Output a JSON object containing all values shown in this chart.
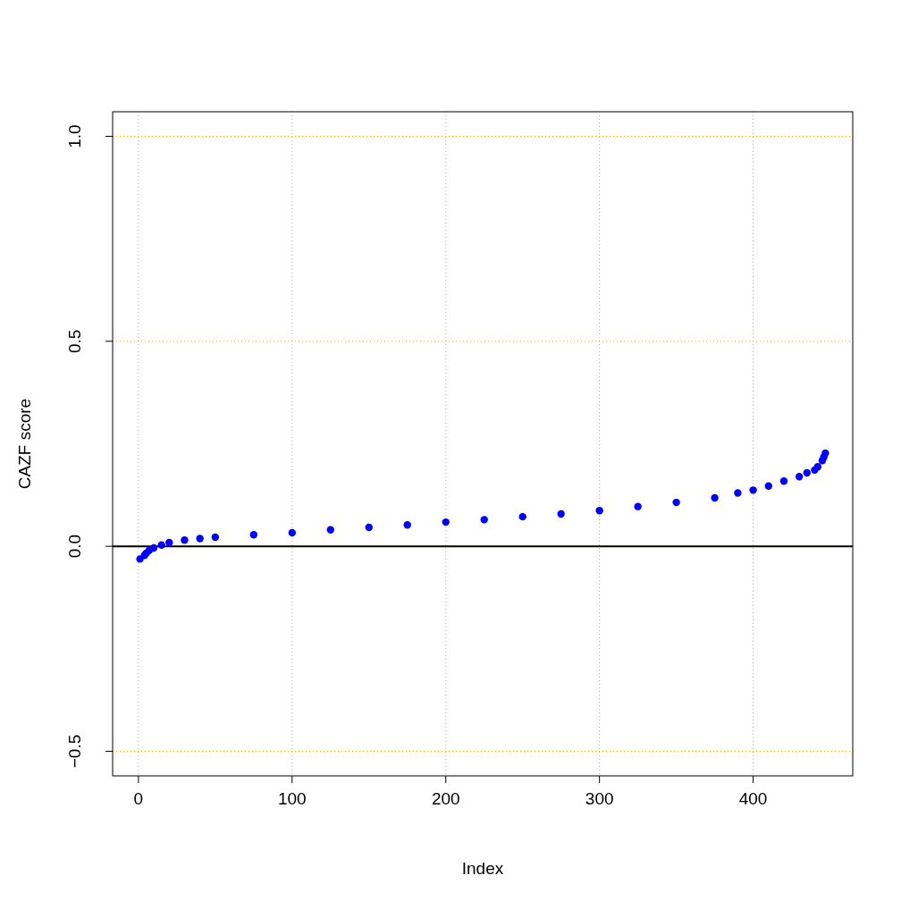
{
  "chart_data": {
    "type": "scatter",
    "xlabel": "Index",
    "ylabel": "CAZF score",
    "xlim": [
      -16.8,
      464.8
    ],
    "ylim": [
      -0.56,
      1.06
    ],
    "xticks": [
      0,
      100,
      200,
      300,
      400
    ],
    "yticks": [
      -0.5,
      {
        "value": 0,
        "label": "0.0"
      },
      0.5,
      {
        "value": 1,
        "label": "1.0"
      }
    ],
    "grid": true,
    "marker": "circle",
    "ref_lines": [
      {
        "axis": "y",
        "value": 0,
        "color": "#000000",
        "line_style": "solid"
      }
    ],
    "series": [
      {
        "color": "#0000ff",
        "x": [
          1,
          4,
          5,
          7,
          10,
          15,
          20,
          30,
          40,
          50,
          75,
          100,
          125,
          150,
          175,
          200,
          225,
          250,
          275,
          300,
          325,
          350,
          375,
          390,
          400,
          410,
          420,
          430,
          435,
          440,
          442,
          445,
          446,
          447
        ],
        "values": [
          -0.031,
          -0.022,
          -0.017,
          -0.01,
          -0.004,
          0.003,
          0.009,
          0.015,
          0.019,
          0.022,
          0.028,
          0.033,
          0.04,
          0.046,
          0.052,
          0.059,
          0.065,
          0.072,
          0.079,
          0.087,
          0.097,
          0.107,
          0.118,
          0.13,
          0.137,
          0.147,
          0.159,
          0.17,
          0.179,
          0.186,
          0.194,
          0.209,
          0.218,
          0.227
        ]
      }
    ]
  }
}
